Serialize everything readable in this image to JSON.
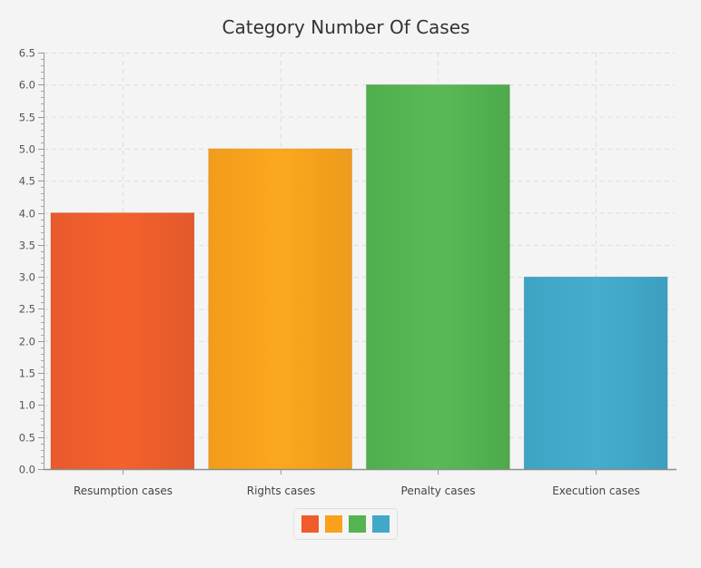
{
  "chart_data": {
    "type": "bar",
    "title": "Category Number Of Cases",
    "xlabel": "",
    "ylabel": "",
    "categories": [
      "Resumption cases",
      "Rights cases",
      "Penalty cases",
      "Execution cases"
    ],
    "values": [
      4.0,
      5.0,
      6.0,
      3.0
    ],
    "ylim": [
      0,
      6.5
    ],
    "y_ticks": [
      "0.0",
      "0.5",
      "1.0",
      "1.5",
      "2.0",
      "2.5",
      "3.0",
      "3.5",
      "4.0",
      "4.5",
      "5.0",
      "5.5",
      "6.0",
      "6.5"
    ],
    "grid": true,
    "legend_position": "bottom",
    "colors": [
      "#f15a2b",
      "#f9a11b",
      "#54b44f",
      "#41a8c8"
    ]
  }
}
